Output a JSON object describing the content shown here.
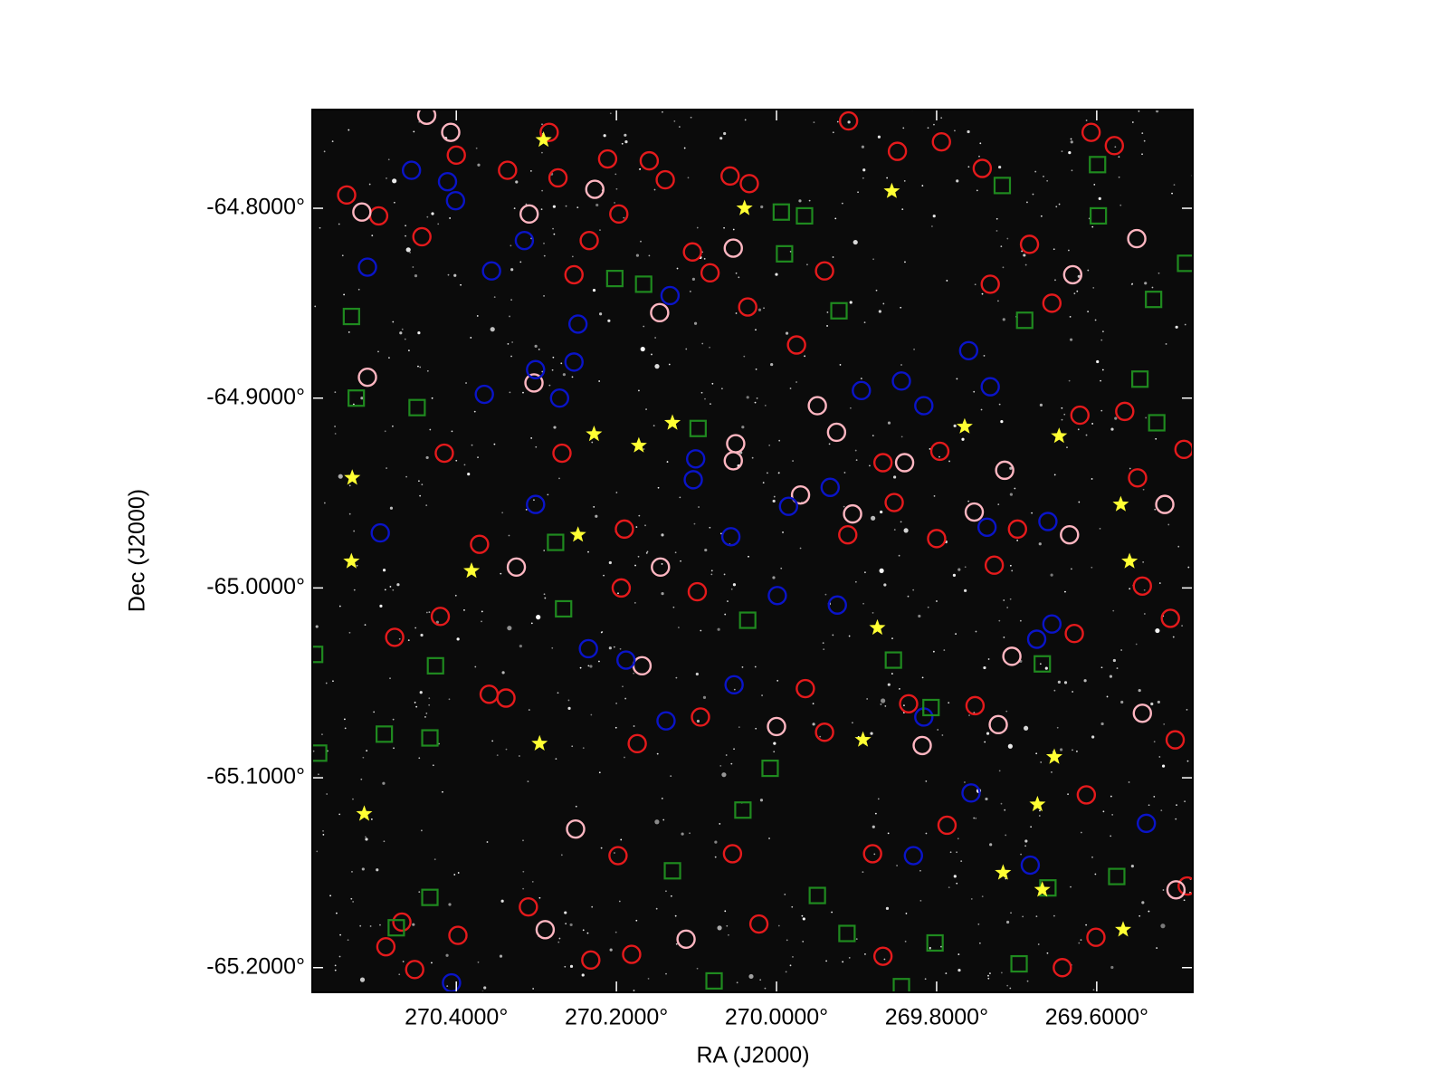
{
  "chart_data": {
    "type": "scatter",
    "xlabel": "RA (J2000)",
    "ylabel": "Dec (J2000)",
    "xlim": [
      270.58,
      269.48
    ],
    "ylim": [
      -65.213,
      -64.748
    ],
    "xticks": [
      {
        "value": 270.4,
        "label": "270.4000°"
      },
      {
        "value": 270.2,
        "label": "270.2000°"
      },
      {
        "value": 270.0,
        "label": "270.0000°"
      },
      {
        "value": 269.8,
        "label": "269.8000°"
      },
      {
        "value": 269.6,
        "label": "269.6000°"
      }
    ],
    "yticks": [
      {
        "value": -64.8,
        "label": "-64.8000°"
      },
      {
        "value": -64.9,
        "label": "-64.9000°"
      },
      {
        "value": -65.0,
        "label": "-65.0000°"
      },
      {
        "value": -65.1,
        "label": "-65.1000°"
      },
      {
        "value": -65.2,
        "label": "-65.2000°"
      }
    ],
    "series": [
      {
        "color": "#e41a1c",
        "marker": "circle",
        "x": [
          270.537,
          270.497,
          270.443,
          270.4,
          270.336,
          270.284,
          270.273,
          270.211,
          270.159,
          270.139,
          270.058,
          270.034,
          270.197,
          270.234,
          270.253,
          270.105,
          270.083,
          270.036,
          269.94,
          269.975,
          269.91,
          269.849,
          269.794,
          269.743,
          269.607,
          269.578,
          269.684,
          269.733,
          269.656,
          269.621,
          269.565,
          269.491,
          269.549,
          269.853,
          269.796,
          269.867,
          269.911,
          269.8,
          269.699,
          269.543,
          269.508,
          269.628,
          269.728,
          270.194,
          270.099,
          270.19,
          270.268,
          270.415,
          270.371,
          270.477,
          270.42,
          270.359,
          270.338,
          270.174,
          270.095,
          269.964,
          269.94,
          269.835,
          269.752,
          269.502,
          269.613,
          269.787,
          269.88,
          270.055,
          270.198,
          270.31,
          270.398,
          270.468,
          270.488,
          269.643,
          269.487,
          269.867,
          270.022,
          270.181,
          270.232,
          270.452,
          269.601
        ],
        "values": [
          -64.793,
          -64.804,
          -64.815,
          -64.772,
          -64.78,
          -64.76,
          -64.784,
          -64.774,
          -64.775,
          -64.785,
          -64.783,
          -64.787,
          -64.803,
          -64.817,
          -64.835,
          -64.823,
          -64.834,
          -64.852,
          -64.833,
          -64.872,
          -64.754,
          -64.77,
          -64.765,
          -64.779,
          -64.76,
          -64.767,
          -64.819,
          -64.84,
          -64.85,
          -64.909,
          -64.907,
          -64.927,
          -64.942,
          -64.955,
          -64.928,
          -64.934,
          -64.972,
          -64.974,
          -64.969,
          -64.999,
          -65.016,
          -65.024,
          -64.988,
          -65.0,
          -65.002,
          -64.969,
          -64.929,
          -64.929,
          -64.977,
          -65.026,
          -65.015,
          -65.056,
          -65.058,
          -65.082,
          -65.068,
          -65.053,
          -65.076,
          -65.061,
          -65.062,
          -65.08,
          -65.109,
          -65.125,
          -65.14,
          -65.14,
          -65.141,
          -65.168,
          -65.183,
          -65.176,
          -65.189,
          -65.2,
          -65.157,
          -65.194,
          -65.177,
          -65.193,
          -65.196,
          -65.201,
          -65.184
        ]
      },
      {
        "color": "#ffb6c1",
        "marker": "circle",
        "x": [
          270.437,
          270.407,
          270.227,
          270.309,
          270.518,
          270.054,
          270.146,
          270.511,
          270.303,
          269.949,
          269.925,
          270.051,
          270.054,
          269.97,
          269.905,
          269.84,
          269.753,
          269.715,
          269.634,
          269.515,
          270.325,
          270.145,
          269.706,
          270.168,
          270.0,
          269.818,
          269.723,
          269.543,
          270.251,
          270.113,
          269.501,
          270.289,
          269.63,
          269.55
        ],
        "values": [
          -64.751,
          -64.76,
          -64.79,
          -64.803,
          -64.802,
          -64.821,
          -64.855,
          -64.889,
          -64.892,
          -64.904,
          -64.918,
          -64.924,
          -64.933,
          -64.951,
          -64.961,
          -64.934,
          -64.96,
          -64.938,
          -64.972,
          -64.956,
          -64.989,
          -64.989,
          -65.036,
          -65.041,
          -65.073,
          -65.083,
          -65.072,
          -65.066,
          -65.127,
          -65.185,
          -65.159,
          -65.18,
          -64.835,
          -64.816
        ]
      },
      {
        "color": "#0a14c8",
        "marker": "circle",
        "x": [
          270.456,
          270.411,
          270.401,
          270.315,
          270.356,
          270.511,
          270.133,
          270.248,
          270.253,
          270.301,
          270.365,
          270.271,
          269.894,
          269.844,
          269.816,
          269.76,
          269.733,
          270.101,
          270.104,
          269.985,
          269.933,
          270.301,
          270.495,
          270.057,
          269.661,
          269.737,
          269.999,
          269.924,
          270.235,
          270.188,
          270.053,
          269.656,
          269.675,
          270.138,
          269.816,
          269.757,
          269.538,
          269.829,
          269.683,
          270.406
        ],
        "values": [
          -64.78,
          -64.786,
          -64.796,
          -64.817,
          -64.833,
          -64.831,
          -64.846,
          -64.861,
          -64.881,
          -64.885,
          -64.898,
          -64.9,
          -64.896,
          -64.891,
          -64.904,
          -64.875,
          -64.894,
          -64.932,
          -64.943,
          -64.957,
          -64.947,
          -64.956,
          -64.971,
          -64.973,
          -64.965,
          -64.968,
          -65.004,
          -65.009,
          -65.032,
          -65.038,
          -65.051,
          -65.019,
          -65.027,
          -65.07,
          -65.068,
          -65.108,
          -65.124,
          -65.141,
          -65.146,
          -65.208
        ]
      },
      {
        "color": "#1f8a1f",
        "marker": "square",
        "x": [
          269.599,
          269.718,
          269.598,
          269.994,
          269.965,
          269.99,
          270.202,
          270.166,
          269.489,
          270.531,
          269.922,
          269.529,
          269.69,
          270.525,
          270.449,
          269.546,
          270.098,
          269.525,
          270.276,
          270.266,
          270.036,
          270.426,
          269.854,
          269.668,
          270.49,
          270.433,
          270.572,
          269.807,
          270.008,
          270.042,
          270.13,
          270.433,
          269.949,
          269.575,
          269.661,
          270.475,
          269.912,
          269.802,
          269.697,
          270.078,
          269.844,
          270.577
        ],
        "values": [
          -64.777,
          -64.788,
          -64.804,
          -64.802,
          -64.804,
          -64.824,
          -64.837,
          -64.84,
          -64.829,
          -64.857,
          -64.854,
          -64.848,
          -64.859,
          -64.9,
          -64.905,
          -64.89,
          -64.916,
          -64.913,
          -64.976,
          -65.011,
          -65.017,
          -65.041,
          -65.038,
          -65.04,
          -65.077,
          -65.079,
          -65.087,
          -65.063,
          -65.095,
          -65.117,
          -65.149,
          -65.163,
          -65.162,
          -65.152,
          -65.158,
          -65.179,
          -65.182,
          -65.187,
          -65.198,
          -65.207,
          -65.21,
          -65.035
        ]
      },
      {
        "color": "#ffff33",
        "marker": "star",
        "x": [
          270.291,
          270.04,
          269.856,
          270.228,
          270.172,
          270.13,
          269.765,
          269.647,
          270.53,
          270.248,
          269.57,
          269.559,
          270.531,
          270.381,
          269.874,
          270.296,
          269.892,
          269.653,
          269.674,
          270.515,
          269.717,
          269.668,
          269.567
        ],
        "values": [
          -64.764,
          -64.8,
          -64.791,
          -64.919,
          -64.925,
          -64.913,
          -64.915,
          -64.92,
          -64.942,
          -64.972,
          -64.956,
          -64.986,
          -64.986,
          -64.991,
          -65.021,
          -65.082,
          -65.08,
          -65.089,
          -65.114,
          -65.119,
          -65.15,
          -65.159,
          -65.18
        ]
      }
    ]
  }
}
